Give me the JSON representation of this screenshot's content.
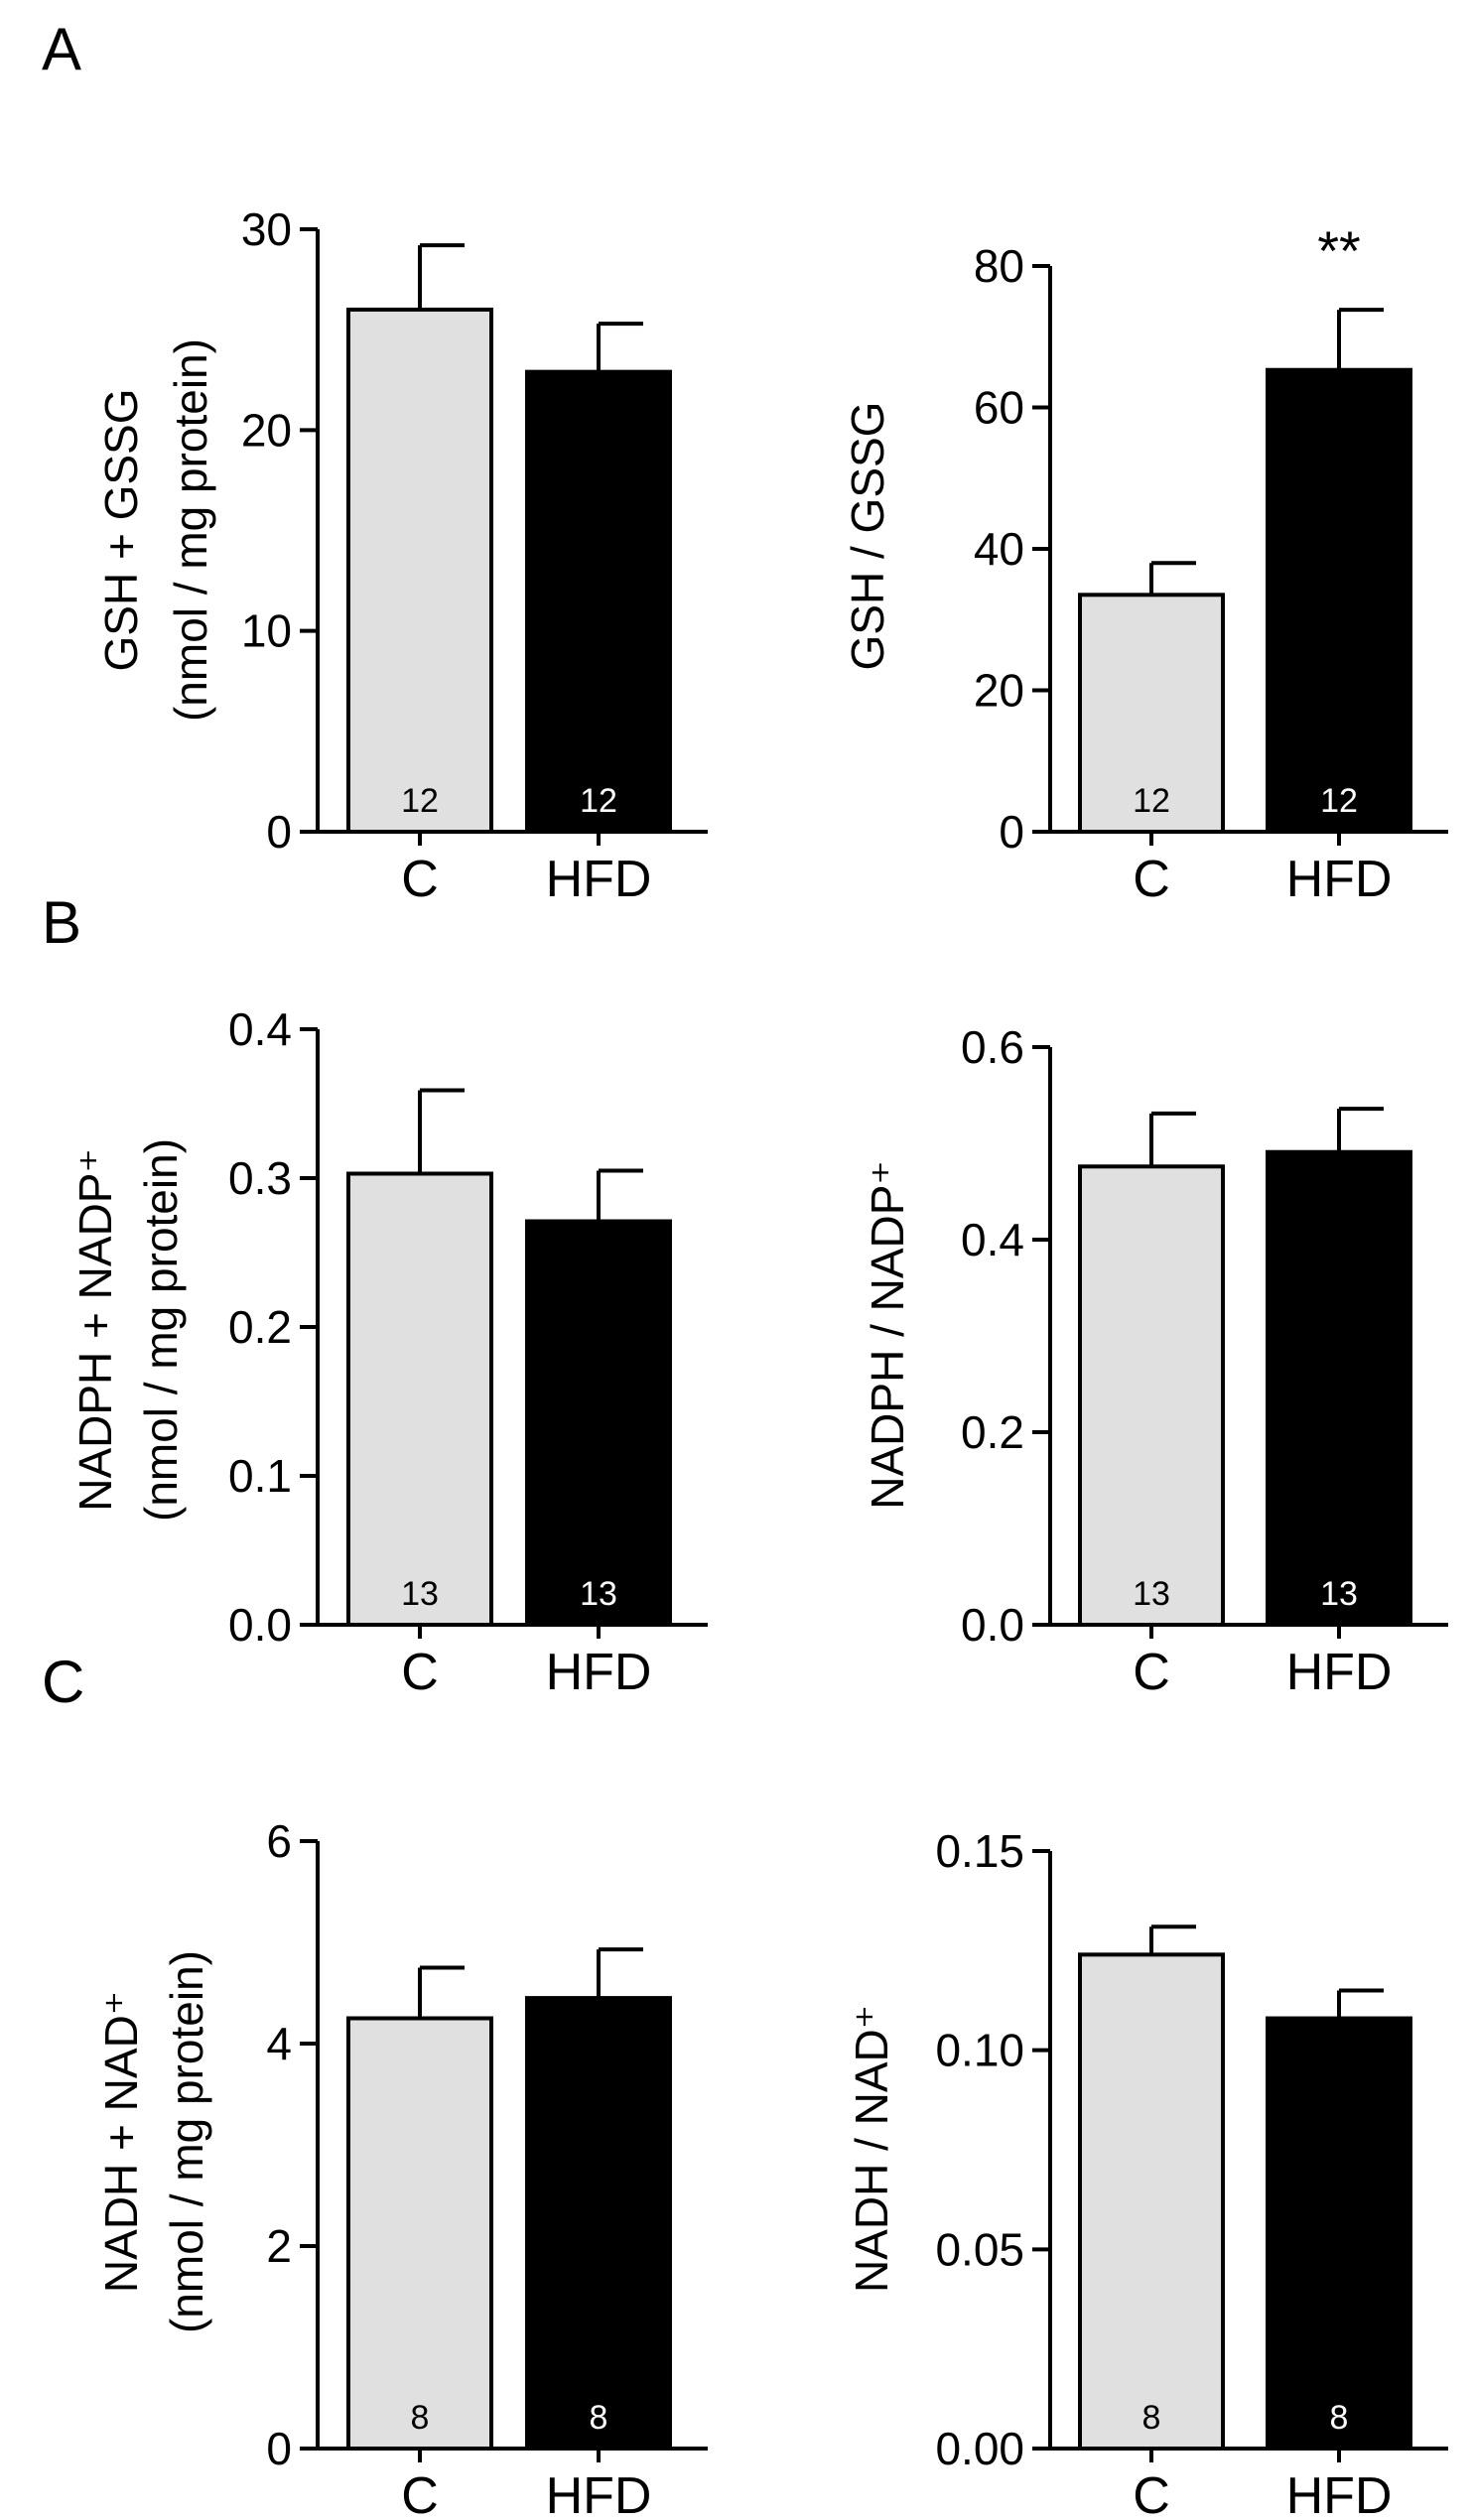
{
  "panels": [
    {
      "letter": "A"
    },
    {
      "letter": "B"
    },
    {
      "letter": "C"
    }
  ],
  "colors": {
    "control": "#e0e0e0",
    "hfd": "#000000",
    "axis": "#000000"
  },
  "chart_data": [
    {
      "id": "gsh_total",
      "type": "bar",
      "ylabel": [
        "GSH + GSSG",
        "(nmol / mg protein)"
      ],
      "ylim": [
        0,
        30
      ],
      "yticks": [
        "0",
        "10",
        "20",
        "30"
      ],
      "ytick_values": [
        0,
        10,
        20,
        30
      ],
      "categories": [
        "C",
        "HFD"
      ],
      "values": [
        26.0,
        22.9
      ],
      "errors": [
        3.2,
        2.4
      ],
      "n": [
        "12",
        "12"
      ],
      "annotations": [
        "",
        ""
      ]
    },
    {
      "id": "gsh_ratio",
      "type": "bar",
      "ylabel": [
        "GSH / GSSG"
      ],
      "ylim": [
        0,
        80
      ],
      "yticks": [
        "0",
        "20",
        "40",
        "60",
        "80"
      ],
      "ytick_values": [
        0,
        20,
        40,
        60,
        80
      ],
      "categories": [
        "C",
        "HFD"
      ],
      "values": [
        33.5,
        65.3
      ],
      "errors": [
        4.5,
        8.5
      ],
      "n": [
        "12",
        "12"
      ],
      "annotations": [
        "",
        "**"
      ]
    },
    {
      "id": "nadph_total",
      "type": "bar",
      "ylabel": [
        "NADPH + NADP⁺",
        "(nmol / mg protein)"
      ],
      "ylim": [
        0,
        0.4
      ],
      "yticks": [
        "0.0",
        "0.1",
        "0.2",
        "0.3",
        "0.4"
      ],
      "ytick_values": [
        0,
        0.1,
        0.2,
        0.3,
        0.4
      ],
      "categories": [
        "C",
        "HFD"
      ],
      "values": [
        0.303,
        0.271
      ],
      "errors": [
        0.056,
        0.034
      ],
      "n": [
        "13",
        "13"
      ],
      "annotations": [
        "",
        ""
      ]
    },
    {
      "id": "nadph_ratio",
      "type": "bar",
      "ylabel": [
        "NADPH / NADP⁺"
      ],
      "ylim": [
        0,
        0.6
      ],
      "yticks": [
        "0.0",
        "0.2",
        "0.4",
        "0.6"
      ],
      "ytick_values": [
        0,
        0.2,
        0.4,
        0.6
      ],
      "categories": [
        "C",
        "HFD"
      ],
      "values": [
        0.476,
        0.491
      ],
      "errors": [
        0.055,
        0.045
      ],
      "n": [
        "13",
        "13"
      ],
      "annotations": [
        "",
        ""
      ]
    },
    {
      "id": "nadh_total",
      "type": "bar",
      "ylabel": [
        "NADH + NAD⁺",
        "(nmol / mg protein)"
      ],
      "ylim": [
        0,
        6
      ],
      "yticks": [
        "0",
        "2",
        "4",
        "6"
      ],
      "ytick_values": [
        0,
        2,
        4,
        6
      ],
      "categories": [
        "C",
        "HFD"
      ],
      "values": [
        4.25,
        4.45
      ],
      "errors": [
        0.5,
        0.48
      ],
      "n": [
        "8",
        "8"
      ],
      "annotations": [
        "",
        ""
      ]
    },
    {
      "id": "nadh_ratio",
      "type": "bar",
      "ylabel": [
        "NADH / NAD⁺"
      ],
      "ylim": [
        0,
        0.15
      ],
      "yticks": [
        "0.00",
        "0.05",
        "0.10",
        "0.15"
      ],
      "ytick_values": [
        0,
        0.05,
        0.1,
        0.15
      ],
      "categories": [
        "C",
        "HFD"
      ],
      "values": [
        0.124,
        0.108
      ],
      "errors": [
        0.007,
        0.007
      ],
      "n": [
        "8",
        "8"
      ],
      "annotations": [
        "",
        ""
      ]
    }
  ]
}
